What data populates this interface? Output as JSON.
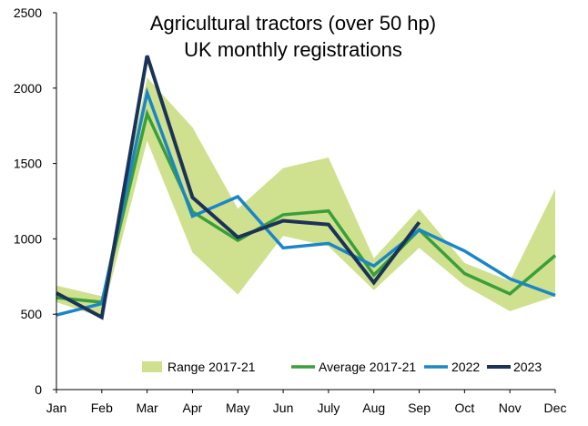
{
  "chart_data": {
    "type": "line",
    "title": "Agricultural tractors (over 50 hp)",
    "subtitle": "UK monthly registrations",
    "xlabel": "",
    "ylabel": "",
    "categories": [
      "Jan",
      "Feb",
      "Mar",
      "Apr",
      "May",
      "Jun",
      "July",
      "Aug",
      "Sep",
      "Oct",
      "Nov",
      "Dec"
    ],
    "ylim": [
      0,
      2500
    ],
    "yticks": [
      0,
      500,
      1000,
      1500,
      2000,
      2500
    ],
    "grid": false,
    "legend_position": "bottom-center",
    "range": {
      "name": "Range 2017-21",
      "color": "#cfe18f",
      "low": [
        580,
        480,
        1650,
        910,
        630,
        1020,
        950,
        660,
        940,
        690,
        520,
        620
      ],
      "high": [
        690,
        620,
        2070,
        1740,
        1200,
        1470,
        1540,
        870,
        1200,
        840,
        720,
        1330
      ]
    },
    "series": [
      {
        "name": "Average 2017-21",
        "color": "#3a9e3a",
        "values": [
          610,
          580,
          1830,
          1180,
          990,
          1160,
          1185,
          760,
          1060,
          770,
          635,
          890
        ]
      },
      {
        "name": "2022",
        "color": "#1a86c8",
        "values": [
          495,
          570,
          1970,
          1150,
          1280,
          940,
          970,
          820,
          1060,
          920,
          735,
          625
        ]
      },
      {
        "name": "2023",
        "color": "#1b3358",
        "values": [
          640,
          480,
          2215,
          1275,
          1010,
          1120,
          1095,
          710,
          1110,
          null,
          null,
          null
        ]
      }
    ]
  }
}
